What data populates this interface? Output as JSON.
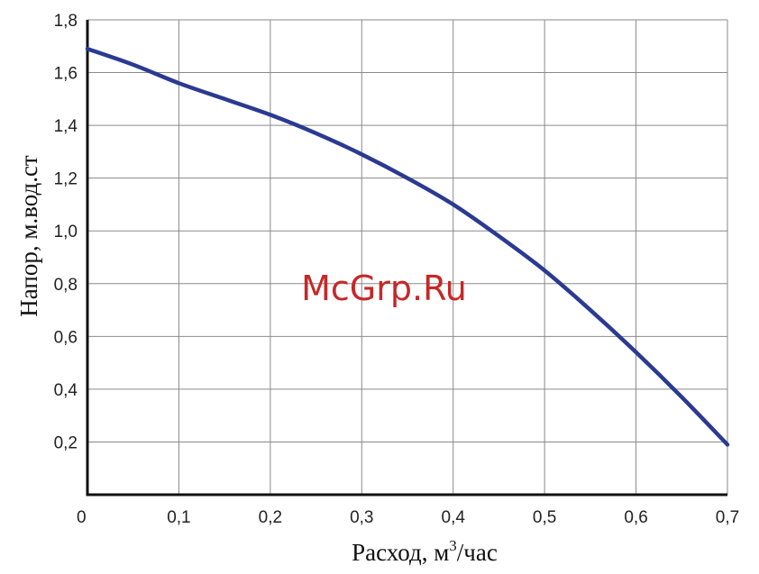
{
  "chart_data": {
    "type": "line",
    "title": "",
    "xlabel_main": "Расход, м",
    "xlabel_sup": "3",
    "xlabel_tail": "/час",
    "ylabel": "Напор, м.вод.ст",
    "xlim": [
      0,
      0.7
    ],
    "ylim": [
      0,
      1.8
    ],
    "grid": true,
    "x_ticks": [
      0,
      0.1,
      0.2,
      0.3,
      0.4,
      0.5,
      0.6,
      0.7
    ],
    "x_tick_labels": [
      "0",
      "0,1",
      "0,2",
      "0,3",
      "0,4",
      "0,5",
      "0,6",
      "0,7"
    ],
    "y_ticks": [
      0.2,
      0.4,
      0.6,
      0.8,
      1.0,
      1.2,
      1.4,
      1.6,
      1.8
    ],
    "y_tick_labels": [
      "0,2",
      "0,4",
      "0,6",
      "0,8",
      "1,0",
      "1,2",
      "1,4",
      "1,6",
      "1,8"
    ],
    "series": [
      {
        "color": "#2b3a91",
        "x": [
          0,
          0.05,
          0.1,
          0.15,
          0.2,
          0.25,
          0.3,
          0.35,
          0.4,
          0.45,
          0.5,
          0.55,
          0.6,
          0.65,
          0.7
        ],
        "y": [
          1.69,
          1.63,
          1.56,
          1.5,
          1.44,
          1.37,
          1.29,
          1.2,
          1.1,
          0.98,
          0.85,
          0.7,
          0.54,
          0.37,
          0.19
        ]
      }
    ]
  },
  "watermark": {
    "text": "McGrp.Ru",
    "color": "#c62828"
  }
}
